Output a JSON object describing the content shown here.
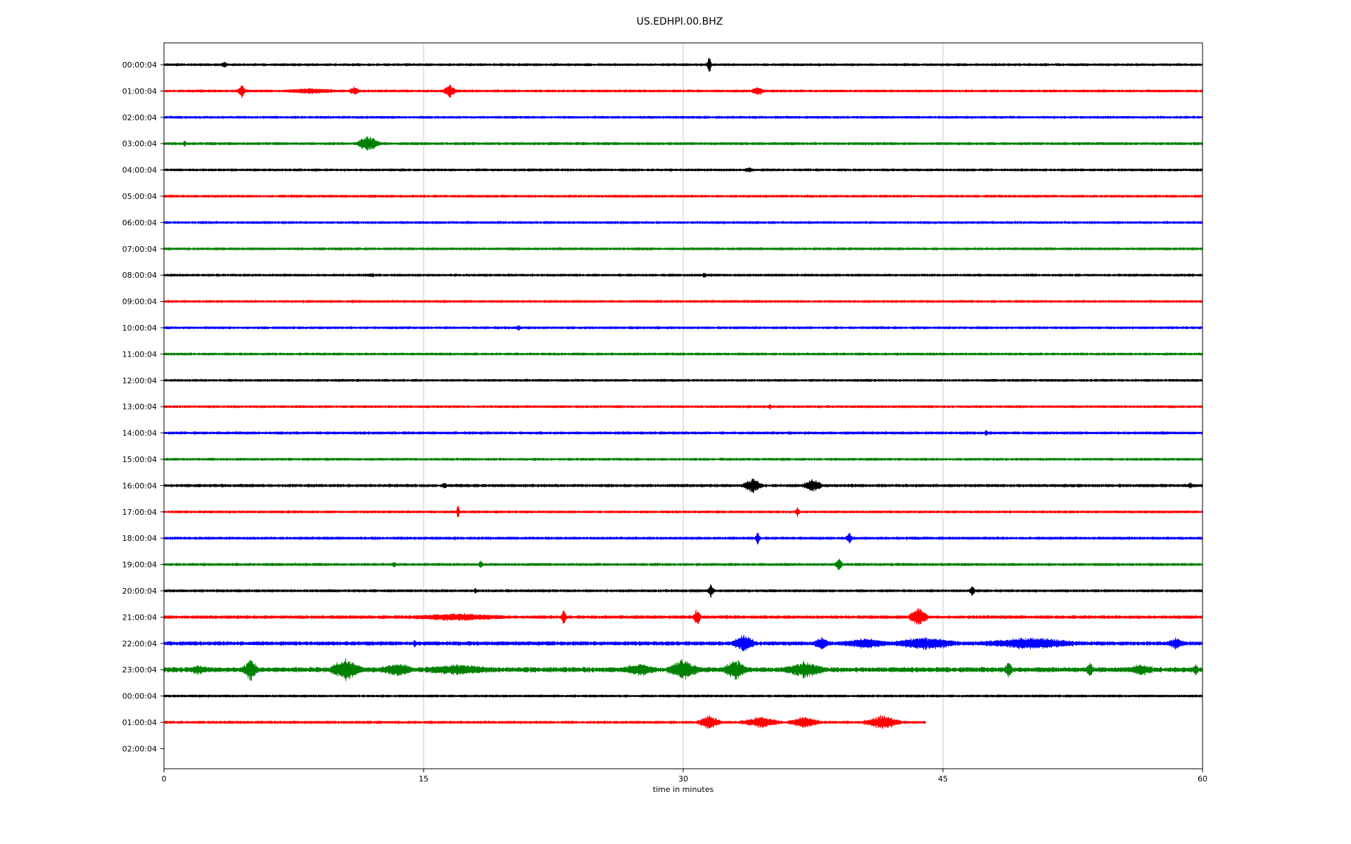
{
  "chart_data": {
    "type": "line",
    "title": "US.EDHPI.00.BHZ",
    "xlabel": "time in minutes",
    "ylabel": "",
    "xlim": [
      0,
      60
    ],
    "x_ticks": [
      0,
      15,
      30,
      45,
      60
    ],
    "x_tick_labels": [
      "0",
      "15",
      "30",
      "45",
      "60"
    ],
    "grid": "vertical",
    "colors": [
      "#000000",
      "#ff0000",
      "#0000ff",
      "#008000"
    ],
    "row_labels": [
      "00:00:04",
      "01:00:04",
      "02:00:04",
      "03:00:04",
      "04:00:04",
      "05:00:04",
      "06:00:04",
      "07:00:04",
      "08:00:04",
      "09:00:04",
      "10:00:04",
      "11:00:04",
      "12:00:04",
      "13:00:04",
      "14:00:04",
      "15:00:04",
      "16:00:04",
      "17:00:04",
      "18:00:04",
      "19:00:04",
      "20:00:04",
      "21:00:04",
      "22:00:04",
      "23:00:04",
      "00:00:04",
      "01:00:04",
      "02:00:04"
    ],
    "series": [
      {
        "row": 0,
        "start": 0,
        "end": 60,
        "noise": 1.0,
        "events": [
          {
            "t": 3.5,
            "amp": 3,
            "dur": 0.4
          },
          {
            "t": 31.5,
            "amp": 14,
            "dur": 0.3
          }
        ]
      },
      {
        "row": 1,
        "start": 0,
        "end": 60,
        "noise": 1.0,
        "events": [
          {
            "t": 4.5,
            "amp": 10,
            "dur": 0.5
          },
          {
            "t": 8.5,
            "amp": 3,
            "dur": 3.0
          },
          {
            "t": 11.0,
            "amp": 6,
            "dur": 0.6
          },
          {
            "t": 16.5,
            "amp": 10,
            "dur": 0.8
          },
          {
            "t": 34.3,
            "amp": 6,
            "dur": 0.8
          }
        ]
      },
      {
        "row": 2,
        "start": 0,
        "end": 60,
        "noise": 1.0,
        "events": []
      },
      {
        "row": 3,
        "start": 0,
        "end": 60,
        "noise": 1.1,
        "events": [
          {
            "t": 1.2,
            "amp": 4,
            "dur": 0.2
          },
          {
            "t": 11.8,
            "amp": 11,
            "dur": 1.5
          }
        ]
      },
      {
        "row": 4,
        "start": 0,
        "end": 60,
        "noise": 1.0,
        "events": [
          {
            "t": 33.8,
            "amp": 3,
            "dur": 0.5
          }
        ]
      },
      {
        "row": 5,
        "start": 0,
        "end": 60,
        "noise": 1.0,
        "events": []
      },
      {
        "row": 6,
        "start": 0,
        "end": 60,
        "noise": 1.0,
        "events": []
      },
      {
        "row": 7,
        "start": 0,
        "end": 60,
        "noise": 1.0,
        "events": []
      },
      {
        "row": 8,
        "start": 0,
        "end": 60,
        "noise": 1.0,
        "events": [
          {
            "t": 12.0,
            "amp": 3,
            "dur": 0.3
          },
          {
            "t": 31.2,
            "amp": 3,
            "dur": 0.3
          }
        ]
      },
      {
        "row": 9,
        "start": 0,
        "end": 60,
        "noise": 1.0,
        "events": []
      },
      {
        "row": 10,
        "start": 0,
        "end": 60,
        "noise": 1.0,
        "events": [
          {
            "t": 20.5,
            "amp": 3,
            "dur": 0.3
          }
        ]
      },
      {
        "row": 11,
        "start": 0,
        "end": 60,
        "noise": 1.0,
        "events": []
      },
      {
        "row": 12,
        "start": 0,
        "end": 60,
        "noise": 1.0,
        "events": []
      },
      {
        "row": 13,
        "start": 0,
        "end": 60,
        "noise": 1.0,
        "events": [
          {
            "t": 35.0,
            "amp": 3,
            "dur": 0.2
          }
        ]
      },
      {
        "row": 14,
        "start": 0,
        "end": 60,
        "noise": 1.1,
        "events": [
          {
            "t": 47.5,
            "amp": 4,
            "dur": 0.2
          }
        ]
      },
      {
        "row": 15,
        "start": 0,
        "end": 60,
        "noise": 1.0,
        "events": []
      },
      {
        "row": 16,
        "start": 0,
        "end": 60,
        "noise": 1.2,
        "events": [
          {
            "t": 16.2,
            "amp": 3,
            "dur": 0.3
          },
          {
            "t": 34.0,
            "amp": 11,
            "dur": 1.2
          },
          {
            "t": 37.5,
            "amp": 9,
            "dur": 1.2
          },
          {
            "t": 59.3,
            "amp": 4,
            "dur": 0.3
          }
        ]
      },
      {
        "row": 17,
        "start": 0,
        "end": 60,
        "noise": 1.0,
        "events": [
          {
            "t": 17.0,
            "amp": 12,
            "dur": 0.2
          },
          {
            "t": 36.6,
            "amp": 6,
            "dur": 0.3
          }
        ]
      },
      {
        "row": 18,
        "start": 0,
        "end": 60,
        "noise": 1.1,
        "events": [
          {
            "t": 34.3,
            "amp": 10,
            "dur": 0.3
          },
          {
            "t": 39.6,
            "amp": 8,
            "dur": 0.4
          }
        ]
      },
      {
        "row": 19,
        "start": 0,
        "end": 60,
        "noise": 1.1,
        "events": [
          {
            "t": 13.3,
            "amp": 4,
            "dur": 0.2
          },
          {
            "t": 18.3,
            "amp": 5,
            "dur": 0.3
          },
          {
            "t": 39.0,
            "amp": 9,
            "dur": 0.5
          }
        ]
      },
      {
        "row": 20,
        "start": 0,
        "end": 60,
        "noise": 1.1,
        "events": [
          {
            "t": 18.0,
            "amp": 3,
            "dur": 0.2
          },
          {
            "t": 31.6,
            "amp": 12,
            "dur": 0.4
          },
          {
            "t": 46.7,
            "amp": 7,
            "dur": 0.4
          }
        ]
      },
      {
        "row": 21,
        "start": 0,
        "end": 60,
        "noise": 1.3,
        "events": [
          {
            "t": 17.0,
            "amp": 4,
            "dur": 6.0
          },
          {
            "t": 23.1,
            "amp": 14,
            "dur": 0.3
          },
          {
            "t": 30.8,
            "amp": 12,
            "dur": 0.5
          },
          {
            "t": 43.6,
            "amp": 14,
            "dur": 1.2
          }
        ]
      },
      {
        "row": 22,
        "start": 0,
        "end": 60,
        "noise": 1.6,
        "events": [
          {
            "t": 14.5,
            "amp": 5,
            "dur": 0.2
          },
          {
            "t": 33.5,
            "amp": 12,
            "dur": 1.5
          },
          {
            "t": 38.0,
            "amp": 8,
            "dur": 1.0
          },
          {
            "t": 40.5,
            "amp": 6,
            "dur": 3.0
          },
          {
            "t": 44.0,
            "amp": 8,
            "dur": 4.0
          },
          {
            "t": 50.0,
            "amp": 7,
            "dur": 6.0
          },
          {
            "t": 58.5,
            "amp": 7,
            "dur": 1.0
          }
        ]
      },
      {
        "row": 23,
        "start": 0,
        "end": 60,
        "noise": 2.0,
        "events": [
          {
            "t": 2.0,
            "amp": 5,
            "dur": 1.0
          },
          {
            "t": 5.0,
            "amp": 14,
            "dur": 1.0
          },
          {
            "t": 10.5,
            "amp": 14,
            "dur": 2.0
          },
          {
            "t": 13.5,
            "amp": 8,
            "dur": 2.0
          },
          {
            "t": 17.0,
            "amp": 6,
            "dur": 4.0
          },
          {
            "t": 27.5,
            "amp": 8,
            "dur": 2.0
          },
          {
            "t": 30.0,
            "amp": 14,
            "dur": 2.0
          },
          {
            "t": 33.0,
            "amp": 14,
            "dur": 1.5
          },
          {
            "t": 37.0,
            "amp": 10,
            "dur": 2.5
          },
          {
            "t": 48.8,
            "amp": 10,
            "dur": 0.5
          },
          {
            "t": 53.5,
            "amp": 9,
            "dur": 0.5
          },
          {
            "t": 56.5,
            "amp": 6,
            "dur": 1.5
          },
          {
            "t": 59.6,
            "amp": 8,
            "dur": 0.3
          }
        ]
      },
      {
        "row": 24,
        "start": 0,
        "end": 60,
        "noise": 1.0,
        "events": []
      },
      {
        "row": 25,
        "start": 0,
        "end": 44,
        "noise": 1.1,
        "events": [
          {
            "t": 31.5,
            "amp": 10,
            "dur": 1.5
          },
          {
            "t": 34.5,
            "amp": 8,
            "dur": 2.5
          },
          {
            "t": 37.0,
            "amp": 8,
            "dur": 2.0
          },
          {
            "t": 41.5,
            "amp": 10,
            "dur": 2.3
          }
        ]
      }
    ]
  }
}
